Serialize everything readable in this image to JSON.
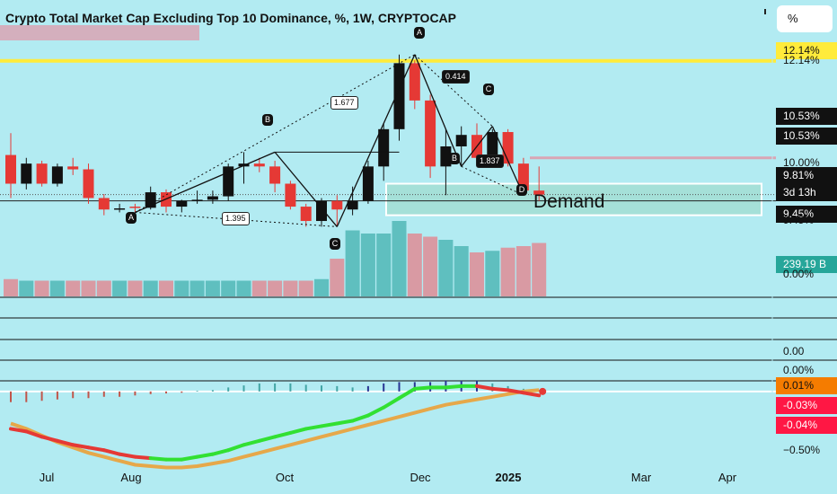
{
  "header": {
    "title": "Crypto Total Market Cap Excluding Top 10 Dominance, %, 1W, CRYPTOCAP",
    "unit_button": "%"
  },
  "price_labels": [
    {
      "text": "12.14%",
      "bg": "#ffeb3b",
      "color": "#111111"
    },
    {
      "text": "10.53%",
      "bg": "#111111",
      "color": "#ffffff"
    },
    {
      "text": "10.53%",
      "bg": "#111111",
      "color": "#ffffff"
    },
    {
      "text": "9.81%",
      "bg": "#111111",
      "color": "#ffffff"
    },
    {
      "text": "3d 13h",
      "bg": "#111111",
      "color": "#ffffff"
    },
    {
      "text": "9.45%",
      "bg": "#111111",
      "color": "#ffffff"
    },
    {
      "text": "239.19 B",
      "bg": "#26a69a",
      "color": "#ffffff"
    },
    {
      "text": "0.01%",
      "bg": "#f57c00",
      "color": "#111111"
    },
    {
      "text": "-0.03%",
      "bg": "#ff1744",
      "color": "#ffffff"
    },
    {
      "text": "-0.04%",
      "bg": "#ff1744",
      "color": "#ffffff"
    }
  ],
  "axis_labels": [
    "12.14%",
    "10.00%",
    "9.45%",
    "0.00%",
    "0.00",
    "0.00%",
    "−0.50%"
  ],
  "time_labels": [
    "Jul",
    "Aug",
    "Oct",
    "Dec",
    "2025",
    "Mar",
    "Apr"
  ],
  "demand_label": "Demand",
  "pattern": {
    "points": [
      "A",
      "B",
      "C",
      "A",
      "B",
      "C",
      "D"
    ],
    "ratios": [
      "1.677",
      "1.395",
      "0.414",
      "1.837"
    ]
  },
  "colors": {
    "background": "#b2ebf2",
    "up": "#111111",
    "down": "#e53935",
    "volume_up": "#5fbfbf",
    "volume_down": "#d99aa3",
    "fast_line": "#32e032",
    "slow_line": "#e6a84a",
    "demand_zone": "#a5e0d8",
    "highlight": "#ffeb3b"
  },
  "chart_data": {
    "type": "candlestick",
    "title": "Crypto Total Market Cap Excluding Top 10 Dominance, %, 1W, CRYPTOCAP",
    "unit": "%",
    "x_labels": [
      "Jul",
      "Aug",
      "Oct",
      "Dec",
      "2025",
      "Mar",
      "Apr"
    ],
    "candles": [
      {
        "o": 10.5,
        "h": 10.88,
        "l": 9.75,
        "c": 10.0
      },
      {
        "o": 10.0,
        "h": 10.45,
        "l": 9.9,
        "c": 10.35
      },
      {
        "o": 10.35,
        "h": 10.4,
        "l": 9.95,
        "c": 10.0
      },
      {
        "o": 10.0,
        "h": 10.35,
        "l": 9.95,
        "c": 10.3
      },
      {
        "o": 10.3,
        "h": 10.45,
        "l": 10.15,
        "c": 10.25
      },
      {
        "o": 10.25,
        "h": 10.35,
        "l": 9.65,
        "c": 9.75
      },
      {
        "o": 9.75,
        "h": 9.82,
        "l": 9.45,
        "c": 9.55
      },
      {
        "o": 9.55,
        "h": 9.65,
        "l": 9.5,
        "c": 9.57
      },
      {
        "o": 9.6,
        "h": 9.65,
        "l": 9.5,
        "c": 9.58
      },
      {
        "o": 9.58,
        "h": 9.95,
        "l": 9.55,
        "c": 9.85
      },
      {
        "o": 9.85,
        "h": 9.9,
        "l": 9.5,
        "c": 9.6
      },
      {
        "o": 9.6,
        "h": 9.72,
        "l": 9.5,
        "c": 9.7
      },
      {
        "o": 9.7,
        "h": 9.88,
        "l": 9.65,
        "c": 9.72
      },
      {
        "o": 9.72,
        "h": 9.88,
        "l": 9.65,
        "c": 9.78
      },
      {
        "o": 9.78,
        "h": 10.35,
        "l": 9.7,
        "c": 10.3
      },
      {
        "o": 10.3,
        "h": 10.55,
        "l": 10.0,
        "c": 10.35
      },
      {
        "o": 10.35,
        "h": 10.45,
        "l": 10.2,
        "c": 10.3
      },
      {
        "o": 10.3,
        "h": 10.4,
        "l": 9.85,
        "c": 10.0
      },
      {
        "o": 10.0,
        "h": 10.05,
        "l": 9.55,
        "c": 9.6
      },
      {
        "o": 9.6,
        "h": 9.65,
        "l": 9.25,
        "c": 9.35
      },
      {
        "o": 9.35,
        "h": 9.75,
        "l": 9.25,
        "c": 9.7
      },
      {
        "o": 9.7,
        "h": 9.8,
        "l": 9.25,
        "c": 9.55
      },
      {
        "o": 9.55,
        "h": 9.95,
        "l": 9.45,
        "c": 9.7
      },
      {
        "o": 9.7,
        "h": 10.4,
        "l": 9.65,
        "c": 10.3
      },
      {
        "o": 10.3,
        "h": 11.05,
        "l": 10.05,
        "c": 10.95
      },
      {
        "o": 10.95,
        "h": 12.25,
        "l": 10.75,
        "c": 12.1
      },
      {
        "o": 12.1,
        "h": 12.15,
        "l": 11.3,
        "c": 11.45
      },
      {
        "o": 11.45,
        "h": 11.55,
        "l": 10.1,
        "c": 10.3
      },
      {
        "o": 10.3,
        "h": 10.95,
        "l": 9.8,
        "c": 10.65
      },
      {
        "o": 10.65,
        "h": 11.0,
        "l": 10.3,
        "c": 10.85
      },
      {
        "o": 10.85,
        "h": 11.05,
        "l": 10.45,
        "c": 10.45
      },
      {
        "o": 10.45,
        "h": 10.95,
        "l": 10.4,
        "c": 10.9
      },
      {
        "o": 10.9,
        "h": 10.95,
        "l": 10.3,
        "c": 10.35
      },
      {
        "o": 10.35,
        "h": 10.45,
        "l": 9.8,
        "c": 9.88
      },
      {
        "o": 9.88,
        "h": 10.3,
        "l": 9.7,
        "c": 9.81
      }
    ],
    "volumes": [
      0.55,
      0.5,
      0.5,
      0.5,
      0.5,
      0.5,
      0.5,
      0.5,
      0.5,
      0.5,
      0.5,
      0.5,
      0.5,
      0.5,
      0.5,
      0.5,
      0.5,
      0.5,
      0.5,
      0.5,
      0.55,
      1.2,
      2.1,
      2.0,
      2.0,
      2.4,
      2.0,
      1.9,
      1.8,
      1.6,
      1.4,
      1.45,
      1.55,
      1.6,
      1.7
    ],
    "volume_label": "239.19 B",
    "fast_line": [
      -0.28,
      -0.3,
      -0.34,
      -0.37,
      -0.4,
      -0.42,
      -0.44,
      -0.47,
      -0.49,
      -0.5,
      -0.51,
      -0.51,
      -0.49,
      -0.47,
      -0.44,
      -0.4,
      -0.37,
      -0.34,
      -0.31,
      -0.28,
      -0.26,
      -0.24,
      -0.22,
      -0.18,
      -0.12,
      -0.05,
      0.02,
      0.03,
      0.03,
      0.04,
      0.04,
      0.02,
      0.01,
      -0.01,
      -0.03
    ],
    "slow_line": [
      -0.24,
      -0.28,
      -0.33,
      -0.38,
      -0.42,
      -0.46,
      -0.49,
      -0.52,
      -0.55,
      -0.56,
      -0.57,
      -0.57,
      -0.56,
      -0.54,
      -0.52,
      -0.49,
      -0.46,
      -0.43,
      -0.4,
      -0.37,
      -0.34,
      -0.31,
      -0.28,
      -0.25,
      -0.22,
      -0.19,
      -0.16,
      -0.13,
      -0.1,
      -0.08,
      -0.06,
      -0.04,
      -0.02,
      0.0,
      0.01
    ],
    "histogram": [
      -0.08,
      -0.08,
      -0.07,
      -0.06,
      -0.05,
      -0.05,
      -0.04,
      -0.04,
      -0.03,
      -0.02,
      -0.015,
      -0.01,
      0.005,
      0.01,
      0.03,
      0.045,
      0.06,
      0.06,
      0.06,
      0.05,
      0.045,
      0.04,
      0.03,
      0.04,
      0.06,
      0.07,
      0.07,
      0.07,
      0.08,
      0.08,
      0.08,
      0.06,
      0.04,
      0.02,
      0.01
    ],
    "levels": {
      "high_line": 12.14,
      "current": 9.81,
      "demand_top": 10.0,
      "demand_bottom": 9.45,
      "resistance": 10.53
    },
    "price_range": [
      9.1,
      12.45
    ],
    "osc_range": [
      -0.58,
      0.12
    ]
  }
}
